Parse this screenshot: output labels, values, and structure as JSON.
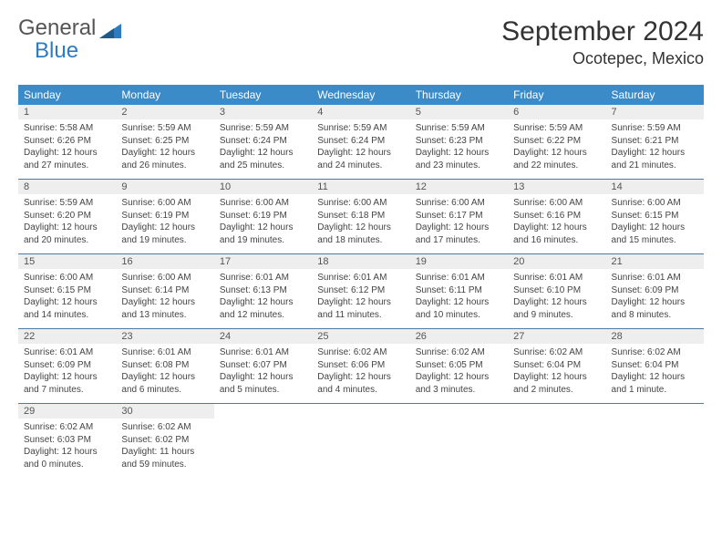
{
  "logo": {
    "word1": "General",
    "word2": "Blue"
  },
  "title": "September 2024",
  "location": "Ocotepec, Mexico",
  "colors": {
    "header_bg": "#3b8bc9",
    "header_fg": "#ffffff",
    "daynum_bg": "#eeeeee",
    "cell_border": "#4a7ba8",
    "logo_gray": "#555555",
    "logo_blue": "#2f7bbf"
  },
  "weekdays": [
    "Sunday",
    "Monday",
    "Tuesday",
    "Wednesday",
    "Thursday",
    "Friday",
    "Saturday"
  ],
  "weeks": [
    [
      {
        "n": "1",
        "sr": "Sunrise: 5:58 AM",
        "ss": "Sunset: 6:26 PM",
        "d1": "Daylight: 12 hours",
        "d2": "and 27 minutes."
      },
      {
        "n": "2",
        "sr": "Sunrise: 5:59 AM",
        "ss": "Sunset: 6:25 PM",
        "d1": "Daylight: 12 hours",
        "d2": "and 26 minutes."
      },
      {
        "n": "3",
        "sr": "Sunrise: 5:59 AM",
        "ss": "Sunset: 6:24 PM",
        "d1": "Daylight: 12 hours",
        "d2": "and 25 minutes."
      },
      {
        "n": "4",
        "sr": "Sunrise: 5:59 AM",
        "ss": "Sunset: 6:24 PM",
        "d1": "Daylight: 12 hours",
        "d2": "and 24 minutes."
      },
      {
        "n": "5",
        "sr": "Sunrise: 5:59 AM",
        "ss": "Sunset: 6:23 PM",
        "d1": "Daylight: 12 hours",
        "d2": "and 23 minutes."
      },
      {
        "n": "6",
        "sr": "Sunrise: 5:59 AM",
        "ss": "Sunset: 6:22 PM",
        "d1": "Daylight: 12 hours",
        "d2": "and 22 minutes."
      },
      {
        "n": "7",
        "sr": "Sunrise: 5:59 AM",
        "ss": "Sunset: 6:21 PM",
        "d1": "Daylight: 12 hours",
        "d2": "and 21 minutes."
      }
    ],
    [
      {
        "n": "8",
        "sr": "Sunrise: 5:59 AM",
        "ss": "Sunset: 6:20 PM",
        "d1": "Daylight: 12 hours",
        "d2": "and 20 minutes."
      },
      {
        "n": "9",
        "sr": "Sunrise: 6:00 AM",
        "ss": "Sunset: 6:19 PM",
        "d1": "Daylight: 12 hours",
        "d2": "and 19 minutes."
      },
      {
        "n": "10",
        "sr": "Sunrise: 6:00 AM",
        "ss": "Sunset: 6:19 PM",
        "d1": "Daylight: 12 hours",
        "d2": "and 19 minutes."
      },
      {
        "n": "11",
        "sr": "Sunrise: 6:00 AM",
        "ss": "Sunset: 6:18 PM",
        "d1": "Daylight: 12 hours",
        "d2": "and 18 minutes."
      },
      {
        "n": "12",
        "sr": "Sunrise: 6:00 AM",
        "ss": "Sunset: 6:17 PM",
        "d1": "Daylight: 12 hours",
        "d2": "and 17 minutes."
      },
      {
        "n": "13",
        "sr": "Sunrise: 6:00 AM",
        "ss": "Sunset: 6:16 PM",
        "d1": "Daylight: 12 hours",
        "d2": "and 16 minutes."
      },
      {
        "n": "14",
        "sr": "Sunrise: 6:00 AM",
        "ss": "Sunset: 6:15 PM",
        "d1": "Daylight: 12 hours",
        "d2": "and 15 minutes."
      }
    ],
    [
      {
        "n": "15",
        "sr": "Sunrise: 6:00 AM",
        "ss": "Sunset: 6:15 PM",
        "d1": "Daylight: 12 hours",
        "d2": "and 14 minutes."
      },
      {
        "n": "16",
        "sr": "Sunrise: 6:00 AM",
        "ss": "Sunset: 6:14 PM",
        "d1": "Daylight: 12 hours",
        "d2": "and 13 minutes."
      },
      {
        "n": "17",
        "sr": "Sunrise: 6:01 AM",
        "ss": "Sunset: 6:13 PM",
        "d1": "Daylight: 12 hours",
        "d2": "and 12 minutes."
      },
      {
        "n": "18",
        "sr": "Sunrise: 6:01 AM",
        "ss": "Sunset: 6:12 PM",
        "d1": "Daylight: 12 hours",
        "d2": "and 11 minutes."
      },
      {
        "n": "19",
        "sr": "Sunrise: 6:01 AM",
        "ss": "Sunset: 6:11 PM",
        "d1": "Daylight: 12 hours",
        "d2": "and 10 minutes."
      },
      {
        "n": "20",
        "sr": "Sunrise: 6:01 AM",
        "ss": "Sunset: 6:10 PM",
        "d1": "Daylight: 12 hours",
        "d2": "and 9 minutes."
      },
      {
        "n": "21",
        "sr": "Sunrise: 6:01 AM",
        "ss": "Sunset: 6:09 PM",
        "d1": "Daylight: 12 hours",
        "d2": "and 8 minutes."
      }
    ],
    [
      {
        "n": "22",
        "sr": "Sunrise: 6:01 AM",
        "ss": "Sunset: 6:09 PM",
        "d1": "Daylight: 12 hours",
        "d2": "and 7 minutes."
      },
      {
        "n": "23",
        "sr": "Sunrise: 6:01 AM",
        "ss": "Sunset: 6:08 PM",
        "d1": "Daylight: 12 hours",
        "d2": "and 6 minutes."
      },
      {
        "n": "24",
        "sr": "Sunrise: 6:01 AM",
        "ss": "Sunset: 6:07 PM",
        "d1": "Daylight: 12 hours",
        "d2": "and 5 minutes."
      },
      {
        "n": "25",
        "sr": "Sunrise: 6:02 AM",
        "ss": "Sunset: 6:06 PM",
        "d1": "Daylight: 12 hours",
        "d2": "and 4 minutes."
      },
      {
        "n": "26",
        "sr": "Sunrise: 6:02 AM",
        "ss": "Sunset: 6:05 PM",
        "d1": "Daylight: 12 hours",
        "d2": "and 3 minutes."
      },
      {
        "n": "27",
        "sr": "Sunrise: 6:02 AM",
        "ss": "Sunset: 6:04 PM",
        "d1": "Daylight: 12 hours",
        "d2": "and 2 minutes."
      },
      {
        "n": "28",
        "sr": "Sunrise: 6:02 AM",
        "ss": "Sunset: 6:04 PM",
        "d1": "Daylight: 12 hours",
        "d2": "and 1 minute."
      }
    ],
    [
      {
        "n": "29",
        "sr": "Sunrise: 6:02 AM",
        "ss": "Sunset: 6:03 PM",
        "d1": "Daylight: 12 hours",
        "d2": "and 0 minutes."
      },
      {
        "n": "30",
        "sr": "Sunrise: 6:02 AM",
        "ss": "Sunset: 6:02 PM",
        "d1": "Daylight: 11 hours",
        "d2": "and 59 minutes."
      },
      {
        "empty": true
      },
      {
        "empty": true
      },
      {
        "empty": true
      },
      {
        "empty": true
      },
      {
        "empty": true
      }
    ]
  ]
}
